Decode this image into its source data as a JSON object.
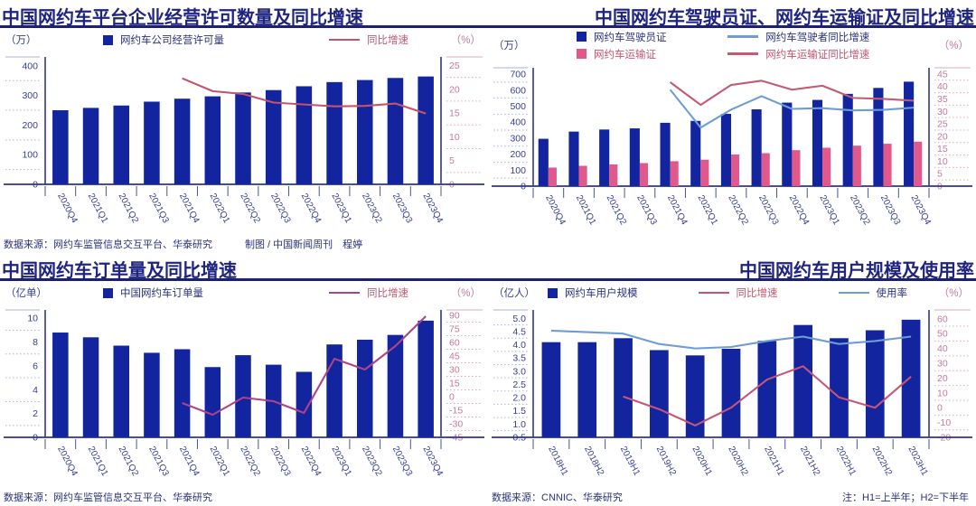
{
  "colors": {
    "navy_bar": "#12249E",
    "pink_bar": "#E0588C",
    "rose_line": "#C4546E",
    "magenta_line": "#AC4489",
    "blue_line": "#6E9CD4",
    "title_navy": "#1F2480",
    "divider_navy": "#1B2072",
    "axis_text_navy": "#353D92",
    "axis_text_rose": "#C8798F"
  },
  "panels": [
    {
      "title": "中国网约车平台企业经营许可数量及同比增速",
      "unit_left": "（万）",
      "unit_right": "（%）",
      "legend": [
        {
          "label": "网约车公司经营许可量",
          "icon": "bar",
          "color": "#12249E",
          "label_color": "#2A327E"
        },
        {
          "label": "同比增速",
          "icon": "line",
          "color": "#C4546E",
          "label_color": "#C4546E"
        }
      ],
      "source": "数据来源：网约车监管信息交互平台、华泰研究",
      "credit": "制图 / 中国新闻周刊　程婷"
    },
    {
      "title": "中国网约车驾驶员证、网约车运输证及同比增速",
      "unit_left": "（万）",
      "unit_right": "（%）",
      "legend": [
        {
          "label": "网约车驾驶员证",
          "icon": "bar",
          "color": "#12249E",
          "label_color": "#2A327E"
        },
        {
          "label": "网约车驾驶者同比增速",
          "icon": "line",
          "color": "#6E9CD4",
          "label_color": "#2A327E"
        },
        {
          "label": "网约车运输证",
          "icon": "bar",
          "color": "#E0588C",
          "label_color": "#C4546E"
        },
        {
          "label": "网约车运输证同比增速",
          "icon": "line",
          "color": "#C25B74",
          "label_color": "#C4546E"
        }
      ],
      "source": "",
      "credit": ""
    },
    {
      "title": "中国网约车订单量及同比增速",
      "unit_left": "（亿单）",
      "unit_right": "（%）",
      "legend": [
        {
          "label": "中国网约车订单量",
          "icon": "bar",
          "color": "#12249E",
          "label_color": "#2A327E"
        },
        {
          "label": "同比增速",
          "icon": "line",
          "color": "#AC4489",
          "label_color": "#C4546E"
        }
      ],
      "source": "数据来源：网约车监管信息交互平台、华泰研究",
      "credit": ""
    },
    {
      "title": "中国网约车用户规模及使用率",
      "unit_left": "（亿人）",
      "unit_right": "（%）",
      "legend": [
        {
          "label": "网约车用户规模",
          "icon": "bar",
          "color": "#12249E",
          "label_color": "#2A327E"
        },
        {
          "label": "同比增速",
          "icon": "line",
          "color": "#C75577",
          "label_color": "#C4546E"
        },
        {
          "label": "使用率",
          "icon": "line",
          "color": "#6E9CD4",
          "label_color": "#2A327E"
        }
      ],
      "source": "数据来源：CNNIC、华泰研究",
      "note": "注：H1=上半年；H2=下半年"
    }
  ],
  "chart_data": [
    {
      "type": "bar",
      "title": "中国网约车平台企业经营许可数量及同比增速",
      "categories": [
        "2020Q4",
        "2021Q1",
        "2021Q2",
        "2021Q3",
        "2021Q4",
        "2022Q1",
        "2022Q2",
        "2022Q3",
        "2022Q4",
        "2023Q1",
        "2023Q2",
        "2023Q3",
        "2023Q4"
      ],
      "series": [
        {
          "name": "网约车公司经营许可量",
          "type": "bar",
          "axis": "left",
          "color": "#12249E",
          "values": [
            250,
            258,
            266,
            279,
            289,
            297,
            310,
            318,
            331,
            345,
            352,
            359,
            364
          ]
        },
        {
          "name": "同比增速",
          "type": "line",
          "axis": "right",
          "color": "#C4546E",
          "values": [
            null,
            null,
            null,
            null,
            22.3,
            19.6,
            19.0,
            17.2,
            16.8,
            16.4,
            16.5,
            17.0,
            14.9
          ]
        }
      ],
      "left_axis": {
        "min": 0,
        "max": 430,
        "ticks": [
          "0",
          "100",
          "200",
          "300",
          "400"
        ]
      },
      "right_axis": {
        "min": 0,
        "max": 26.8,
        "ticks": [
          "0",
          "5",
          "10",
          "15",
          "20",
          "25"
        ]
      },
      "grid": false,
      "legend_position": "top"
    },
    {
      "type": "bar",
      "title": "中国网约车驾驶员证、网约车运输证及同比增速",
      "categories": [
        "2020Q4",
        "2021Q1",
        "2021Q2",
        "2021Q3",
        "2021Q4",
        "2022Q1",
        "2022Q2",
        "2022Q3",
        "2022Q4",
        "2023Q1",
        "2023Q2",
        "2023Q3",
        "2023Q4"
      ],
      "series": [
        {
          "name": "网约车驾驶员证",
          "type": "bar",
          "axis": "left",
          "color": "#12249E",
          "values": [
            296,
            341,
            354,
            361,
            396,
            408,
            452,
            480,
            522,
            539,
            577,
            614,
            653
          ]
        },
        {
          "name": "网约车运输证",
          "type": "bar",
          "axis": "left",
          "color": "#E0588C",
          "values": [
            116,
            127,
            136,
            144,
            156,
            165,
            198,
            206,
            225,
            240,
            253,
            265,
            278
          ]
        },
        {
          "name": "网约车驾驶者同比增速",
          "type": "line",
          "axis": "right",
          "color": "#6E9CD4",
          "values": [
            null,
            null,
            null,
            null,
            38.7,
            23.5,
            30.7,
            36.1,
            31.0,
            31.3,
            30.4,
            30.6,
            31.5
          ]
        },
        {
          "name": "网约车运输证同比增速",
          "type": "line",
          "axis": "right",
          "color": "#C25B74",
          "values": [
            null,
            null,
            null,
            null,
            41.7,
            32.6,
            40.6,
            42.3,
            38.7,
            40.3,
            35.4,
            35.0,
            34.3
          ]
        }
      ],
      "left_axis": {
        "min": 0,
        "max": 740,
        "ticks": [
          "0",
          "100",
          "200",
          "300",
          "400",
          "500",
          "600",
          "700"
        ]
      },
      "right_axis": {
        "min": 0,
        "max": 47.5,
        "ticks": [
          "0",
          "5",
          "10",
          "15",
          "20",
          "25",
          "30",
          "35",
          "40",
          "45"
        ]
      },
      "grid": false,
      "legend_position": "top"
    },
    {
      "type": "bar",
      "title": "中国网约车订单量及同比增速",
      "categories": [
        "2020Q4",
        "2021Q1",
        "2021Q2",
        "2021Q3",
        "2021Q4",
        "2022Q1",
        "2022Q2",
        "2022Q3",
        "2022Q4",
        "2023Q1",
        "2023Q2",
        "2023Q3",
        "2023Q4"
      ],
      "series": [
        {
          "name": "中国网约车订单量",
          "type": "bar",
          "axis": "left",
          "color": "#12249E",
          "values": [
            8.8,
            8.4,
            7.7,
            7.1,
            7.4,
            5.9,
            6.9,
            6.1,
            5.5,
            7.8,
            8.2,
            8.6,
            9.8
          ]
        },
        {
          "name": "同比增速",
          "type": "line",
          "axis": "right",
          "color": "#AC4489",
          "values": [
            null,
            null,
            null,
            null,
            -7,
            -20,
            -1,
            -5,
            -18,
            42,
            30,
            56,
            89
          ]
        }
      ],
      "left_axis": {
        "min": 0,
        "max": 10.7,
        "ticks": [
          "0",
          "2",
          "4",
          "6",
          "8",
          "10"
        ]
      },
      "right_axis": {
        "min": -45,
        "max": 96,
        "ticks": [
          "-45",
          "-30",
          "-15",
          "0",
          "15",
          "30",
          "45",
          "60",
          "75",
          "90"
        ]
      },
      "grid": false,
      "legend_position": "top"
    },
    {
      "type": "bar",
      "title": "中国网约车用户规模及使用率",
      "categories": [
        "2018H1",
        "2018H2",
        "2019H1",
        "2019H2",
        "2020H1",
        "2020H2",
        "2021H1",
        "2021H2",
        "2022H1",
        "2022H2",
        "2023H1"
      ],
      "series": [
        {
          "name": "网约车用户规模",
          "type": "bar",
          "axis": "left",
          "color": "#12249E",
          "values": [
            4.1,
            4.1,
            4.25,
            3.8,
            3.6,
            3.85,
            4.15,
            4.75,
            4.25,
            4.55,
            4.95
          ]
        },
        {
          "name": "同比增速",
          "type": "line",
          "axis": "right",
          "color": "#C75577",
          "values": [
            null,
            null,
            7.5,
            -1,
            -12,
            0,
            19,
            28,
            7,
            0,
            21
          ]
        },
        {
          "name": "使用率",
          "type": "line",
          "axis": "right",
          "color": "#6E9CD4",
          "values": [
            52,
            51,
            50,
            43,
            40,
            41,
            45,
            48,
            43,
            45,
            48
          ]
        }
      ],
      "left_axis": {
        "min": 0.5,
        "max": 5.32,
        "ticks": [
          "0.5",
          "1.0",
          "1.5",
          "2.0",
          "2.5",
          "3.0",
          "3.5",
          "4.0",
          "4.5",
          "5.0"
        ]
      },
      "right_axis": {
        "min": -20,
        "max": 66,
        "ticks": [
          "-20",
          "-10",
          "0",
          "10",
          "20",
          "30",
          "40",
          "50",
          "60"
        ]
      },
      "grid": false,
      "legend_position": "top"
    }
  ]
}
